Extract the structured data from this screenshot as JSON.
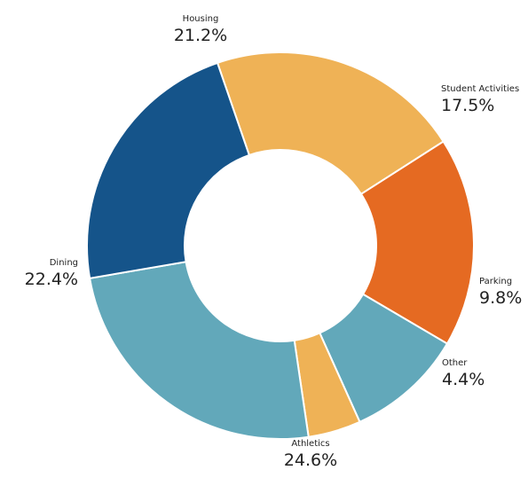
{
  "chart_data": {
    "type": "pie",
    "donut": true,
    "unit": "%",
    "categories": [
      "Housing",
      "Student Activities",
      "Parking",
      "Other",
      "Athletics",
      "Dining"
    ],
    "values": [
      21.2,
      17.5,
      9.8,
      4.4,
      24.6,
      22.4
    ],
    "value_labels": [
      "21.2%",
      "17.5%",
      "9.8%",
      "4.4%",
      "24.6%",
      "22.4%"
    ],
    "colors": [
      "#EFB256",
      "#E56A22",
      "#62A8BA",
      "#EFB256",
      "#62A8BA",
      "#15548A"
    ],
    "legend": "none",
    "labels_position": "outside"
  }
}
